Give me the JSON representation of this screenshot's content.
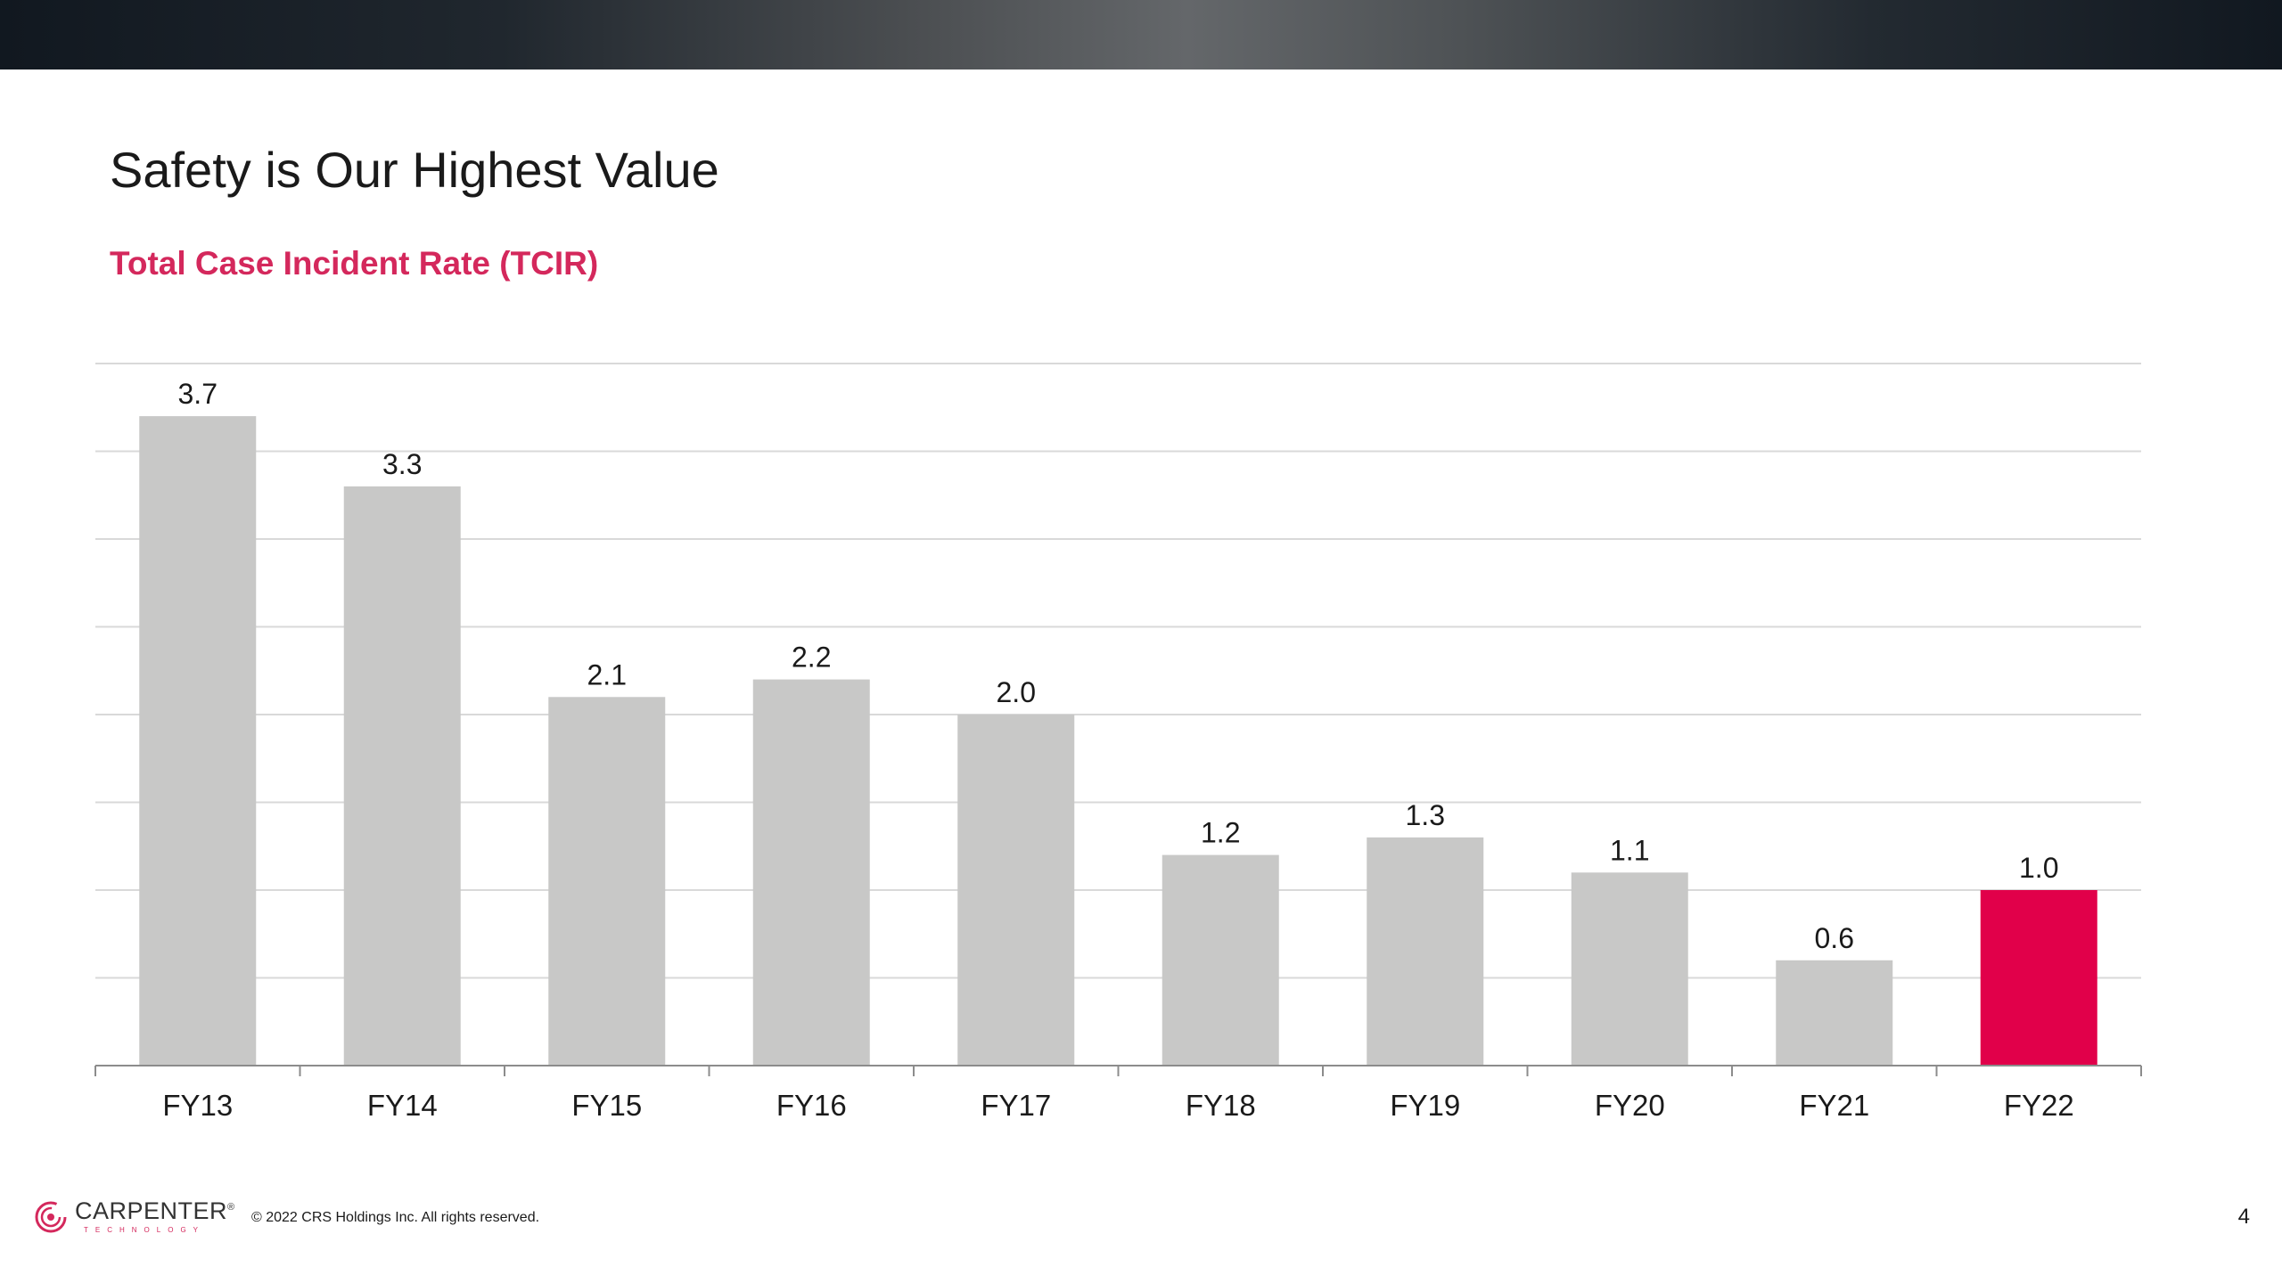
{
  "slide": {
    "title": "Safety is Our Highest Value",
    "subtitle": "Total Case Incident Rate (TCIR)"
  },
  "chart_data": {
    "type": "bar",
    "title": "",
    "xlabel": "",
    "ylabel": "",
    "categories": [
      "FY13",
      "FY14",
      "FY15",
      "FY16",
      "FY17",
      "FY18",
      "FY19",
      "FY20",
      "FY21",
      "FY22"
    ],
    "values": [
      3.7,
      3.3,
      2.1,
      2.2,
      2.0,
      1.2,
      1.3,
      1.1,
      0.6,
      1.0
    ],
    "value_labels": [
      "3.7",
      "3.3",
      "2.1",
      "2.2",
      "2.0",
      "1.2",
      "1.3",
      "1.1",
      "0.6",
      "1.0"
    ],
    "ylim": [
      0,
      4
    ],
    "gridline_step": 0.5,
    "grid": true,
    "legend": "none",
    "colors": {
      "default": "#c8c8c7",
      "highlight": "#e1004a"
    },
    "highlight_index": 9
  },
  "footer": {
    "logo_name": "CARPENTER",
    "logo_mark": "®",
    "logo_sub": "TECHNOLOGY",
    "copyright": "© 2022 CRS Holdings Inc. All rights reserved.",
    "page_number": "4"
  },
  "theme": {
    "accent": "#d4285c"
  }
}
